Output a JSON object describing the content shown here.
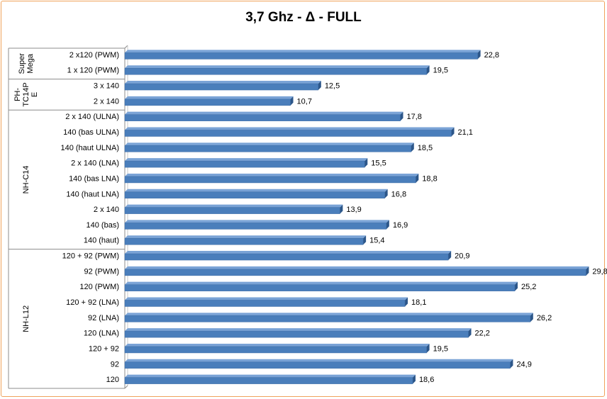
{
  "chart_data": {
    "type": "bar",
    "orientation": "horizontal",
    "title": "3,7 Ghz - Δ - FULL",
    "categories": [
      "2 x120 (PWM)",
      "1 x 120 (PWM)",
      "3 x 140",
      "2 x 140",
      "2 x 140 (ULNA)",
      "140 (bas ULNA)",
      "140 (haut ULNA)",
      "2 x 140 (LNA)",
      "140 (bas LNA)",
      "140 (haut LNA)",
      "2 x 140",
      "140 (bas)",
      "140 (haut)",
      "120 + 92 (PWM)",
      "92 (PWM)",
      "120 (PWM)",
      "120 + 92 (LNA)",
      "92 (LNA)",
      "120 (LNA)",
      "120 + 92",
      "92",
      "120"
    ],
    "values": [
      22.8,
      19.5,
      12.5,
      10.7,
      17.8,
      21.1,
      18.5,
      15.5,
      18.8,
      16.8,
      13.9,
      16.9,
      15.4,
      20.9,
      29.8,
      25.2,
      18.1,
      26.2,
      22.2,
      19.5,
      24.9,
      18.6
    ],
    "value_labels": [
      "22,8",
      "19,5",
      "12,5",
      "10,7",
      "17,8",
      "21,1",
      "18,5",
      "15,5",
      "18,8",
      "16,8",
      "13,9",
      "16,9",
      "15,4",
      "20,9",
      "29,8",
      "25,2",
      "18,1",
      "26,2",
      "22,2",
      "19,5",
      "24,9",
      "18,6"
    ],
    "groups": [
      {
        "label_lines": [
          "Super",
          "Mega"
        ],
        "count": 2
      },
      {
        "label_lines": [
          "PH-",
          "TC14P",
          "E"
        ],
        "count": 2
      },
      {
        "label_lines": [
          "NH-C14"
        ],
        "count": 9
      },
      {
        "label_lines": [
          "NH-L12"
        ],
        "count": 9
      }
    ],
    "xlim": [
      0,
      30
    ],
    "grid": false,
    "legend": "none",
    "bar_color": "#4a7ebb",
    "bar_dark_color": "#2c5689"
  }
}
